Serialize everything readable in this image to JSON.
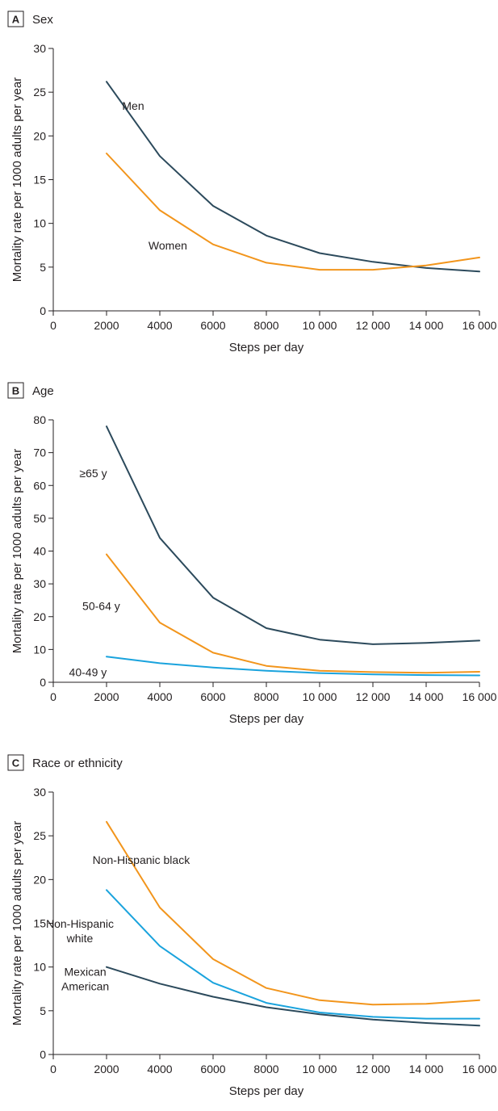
{
  "colors": {
    "dark": "#2c4a5c",
    "orange": "#f2951c",
    "blue": "#1aa3dd"
  },
  "chart_data": [
    {
      "type": "line",
      "panel_letter": "A",
      "title": "Sex",
      "xlabel": "Steps per day",
      "ylabel": "Mortality rate per 1000 adults per year",
      "xlim": [
        0,
        16000
      ],
      "ylim": [
        0,
        30
      ],
      "xticks": [
        0,
        2000,
        4000,
        6000,
        8000,
        10000,
        12000,
        14000,
        16000
      ],
      "xtick_labels": [
        "0",
        "2000",
        "4000",
        "6000",
        "8000",
        "10 000",
        "12 000",
        "14 000",
        "16 000"
      ],
      "yticks": [
        0,
        5,
        10,
        15,
        20,
        25,
        30
      ],
      "x": [
        2000,
        4000,
        6000,
        8000,
        10000,
        12000,
        14000,
        16000
      ],
      "series": [
        {
          "name": "Men",
          "color": "dark",
          "values": [
            26.2,
            17.7,
            12.0,
            8.6,
            6.6,
            5.6,
            4.9,
            4.5
          ],
          "label_at": [
            3000,
            23
          ]
        },
        {
          "name": "Women",
          "color": "orange",
          "values": [
            18.0,
            11.5,
            7.6,
            5.5,
            4.7,
            4.7,
            5.2,
            6.1
          ],
          "label_at": [
            4300,
            7
          ]
        }
      ]
    },
    {
      "type": "line",
      "panel_letter": "B",
      "title": "Age",
      "xlabel": "Steps per day",
      "ylabel": "Mortality rate per 1000 adults per year",
      "xlim": [
        0,
        16000
      ],
      "ylim": [
        0,
        80
      ],
      "xticks": [
        0,
        2000,
        4000,
        6000,
        8000,
        10000,
        12000,
        14000,
        16000
      ],
      "xtick_labels": [
        "0",
        "2000",
        "4000",
        "6000",
        "8000",
        "10 000",
        "12 000",
        "14 000",
        "16 000"
      ],
      "yticks": [
        0,
        10,
        20,
        30,
        40,
        50,
        60,
        70,
        80
      ],
      "x": [
        2000,
        4000,
        6000,
        8000,
        10000,
        12000,
        14000,
        16000
      ],
      "series": [
        {
          "name": "≥65 y",
          "color": "dark",
          "values": [
            78.0,
            44.0,
            25.8,
            16.5,
            13.0,
            11.6,
            12.0,
            12.7
          ],
          "label_at": [
            1500,
            62.5
          ]
        },
        {
          "name": "50-64 y",
          "color": "orange",
          "values": [
            39.0,
            18.2,
            9.0,
            5.0,
            3.5,
            3.1,
            2.9,
            3.2
          ],
          "label_at": [
            1800,
            22
          ]
        },
        {
          "name": "40-49 y",
          "color": "blue",
          "values": [
            7.8,
            5.8,
            4.5,
            3.5,
            2.8,
            2.4,
            2.2,
            2.1
          ],
          "label_at": [
            1300,
            1.8
          ]
        }
      ]
    },
    {
      "type": "line",
      "panel_letter": "C",
      "title": "Race or ethnicity",
      "xlabel": "Steps per day",
      "ylabel": "Mortality rate per 1000 adults per year",
      "xlim": [
        0,
        16000
      ],
      "ylim": [
        0,
        30
      ],
      "xticks": [
        0,
        2000,
        4000,
        6000,
        8000,
        10000,
        12000,
        14000,
        16000
      ],
      "xtick_labels": [
        "0",
        "2000",
        "4000",
        "6000",
        "8000",
        "10 000",
        "12 000",
        "14 000",
        "16 000"
      ],
      "yticks": [
        0,
        5,
        10,
        15,
        20,
        25,
        30
      ],
      "x": [
        2000,
        4000,
        6000,
        8000,
        10000,
        12000,
        14000,
        16000
      ],
      "series": [
        {
          "name": "Non-Hispanic black",
          "color": "orange",
          "values": [
            26.6,
            16.8,
            10.9,
            7.6,
            6.2,
            5.7,
            5.8,
            6.2
          ],
          "label_at": [
            3300,
            21.8
          ]
        },
        {
          "name": "Non-Hispanic white",
          "name_lines": [
            "Non-Hispanic",
            "white"
          ],
          "color": "blue",
          "values": [
            18.8,
            12.4,
            8.2,
            5.9,
            4.8,
            4.3,
            4.1,
            4.1
          ],
          "label_at": [
            1000,
            14.5
          ]
        },
        {
          "name": "Mexican American",
          "name_lines": [
            "Mexican",
            "American"
          ],
          "color": "dark",
          "values": [
            10.0,
            8.1,
            6.6,
            5.4,
            4.6,
            4.0,
            3.6,
            3.3
          ],
          "label_at": [
            1200,
            9.0
          ]
        }
      ]
    }
  ]
}
